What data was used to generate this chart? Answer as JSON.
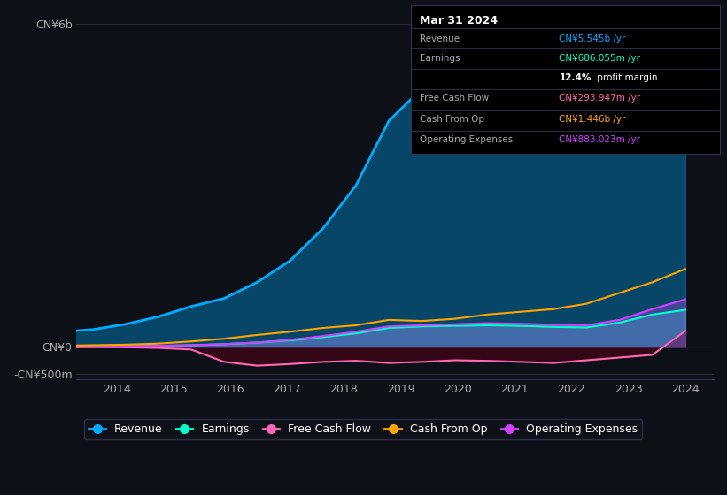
{
  "bg_color": "#0d1117",
  "plot_bg_color": "#0d1117",
  "ylabel_top": "CN¥6b",
  "ylabel_zero": "CN¥0",
  "ylabel_neg": "-CN¥500m",
  "ylim": [
    -600000000,
    6200000000
  ],
  "grid_color": "#2a2a3a",
  "text_color": "#aaaaaa",
  "info_box": {
    "title": "Mar 31 2024",
    "rows": [
      {
        "label": "Revenue",
        "value": "CN¥5.545b /yr",
        "value_color": "#00aaff"
      },
      {
        "label": "Earnings",
        "value": "CN¥686.055m /yr",
        "value_color": "#00ffcc"
      },
      {
        "label": "",
        "value": "12.4% profit margin",
        "value_color": "#ffffff"
      },
      {
        "label": "Free Cash Flow",
        "value": "CN¥293.947m /yr",
        "value_color": "#ff69b4"
      },
      {
        "label": "Cash From Op",
        "value": "CN¥1.446b /yr",
        "value_color": "#ffa500"
      },
      {
        "label": "Operating Expenses",
        "value": "CN¥883.023m /yr",
        "value_color": "#cc44ff"
      }
    ]
  },
  "series": {
    "revenue": {
      "color": "#00aaff",
      "label": "Revenue",
      "values": [
        280000000,
        320000000,
        420000000,
        560000000,
        750000000,
        900000000,
        1200000000,
        1600000000,
        2200000000,
        3000000000,
        4200000000,
        4800000000,
        5000000000,
        5100000000,
        5000000000,
        4800000000,
        4700000000,
        5200000000,
        5500000000,
        5545000000
      ]
    },
    "earnings": {
      "color": "#00ffcc",
      "label": "Earnings",
      "values": [
        5000000,
        8000000,
        12000000,
        18000000,
        30000000,
        50000000,
        80000000,
        120000000,
        180000000,
        250000000,
        350000000,
        380000000,
        390000000,
        400000000,
        390000000,
        370000000,
        360000000,
        450000000,
        600000000,
        686000000
      ]
    },
    "free_cash_flow": {
      "color": "#ff69b4",
      "label": "Free Cash Flow",
      "values": [
        -10000000,
        -5000000,
        -8000000,
        -20000000,
        -50000000,
        -280000000,
        -350000000,
        -320000000,
        -280000000,
        -260000000,
        -300000000,
        -280000000,
        -250000000,
        -260000000,
        -280000000,
        -300000000,
        -250000000,
        -200000000,
        -150000000,
        293000000
      ]
    },
    "cash_from_op": {
      "color": "#ffa500",
      "label": "Cash From Op",
      "values": [
        20000000,
        30000000,
        40000000,
        60000000,
        100000000,
        150000000,
        220000000,
        280000000,
        350000000,
        400000000,
        500000000,
        480000000,
        520000000,
        600000000,
        650000000,
        700000000,
        800000000,
        1000000000,
        1200000000,
        1446000000
      ]
    },
    "operating_expenses": {
      "color": "#cc44ff",
      "label": "Operating Expenses",
      "values": [
        10000000,
        12000000,
        15000000,
        20000000,
        30000000,
        50000000,
        80000000,
        130000000,
        200000000,
        280000000,
        380000000,
        400000000,
        420000000,
        440000000,
        430000000,
        410000000,
        400000000,
        500000000,
        700000000,
        883000000
      ]
    }
  },
  "legend": [
    {
      "label": "Revenue",
      "color": "#00aaff"
    },
    {
      "label": "Earnings",
      "color": "#00ffcc"
    },
    {
      "label": "Free Cash Flow",
      "color": "#ff69b4"
    },
    {
      "label": "Cash From Op",
      "color": "#ffa500"
    },
    {
      "label": "Operating Expenses",
      "color": "#cc44ff"
    }
  ]
}
